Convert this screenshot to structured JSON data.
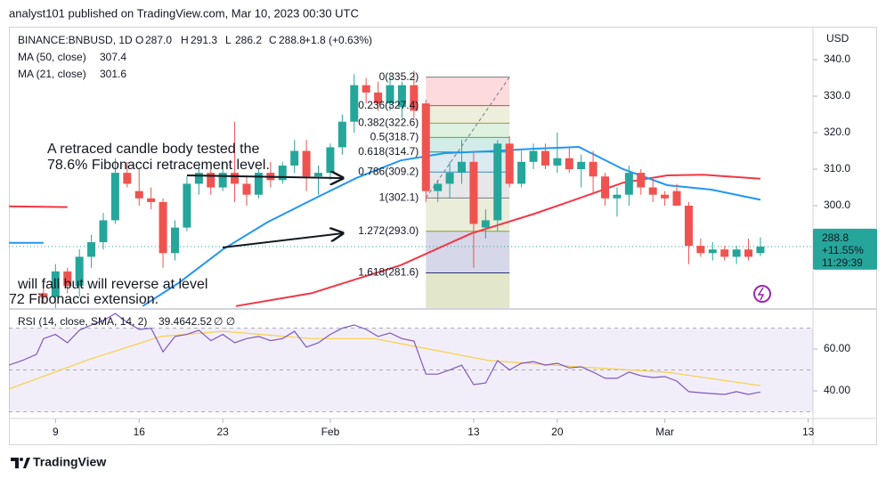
{
  "header": {
    "title": "analyst101 published on TradingView.com, Mar 10, 2023 00:30 UTC"
  },
  "footer": {
    "brand": "TradingView"
  },
  "chart_data": [
    {
      "type": "candlestick",
      "legend": {
        "symbol": "BINANCE:BNBUSD, 1D",
        "items": [
          {
            "key": "O",
            "value": "287.0"
          },
          {
            "key": "H",
            "value": "291.3"
          },
          {
            "key": "L",
            "value": "286.2"
          },
          {
            "key": "C",
            "value": "288.8"
          }
        ],
        "change": "+1.8 (+0.63%)"
      },
      "currency": "USD",
      "x": [
        8,
        9,
        10,
        11,
        12,
        13,
        14,
        15,
        16,
        17,
        18,
        19,
        20,
        21,
        22,
        23,
        24,
        25,
        26,
        27,
        28,
        29,
        30,
        31,
        32,
        33,
        34,
        35,
        36,
        37,
        38,
        39,
        40,
        41,
        42,
        43,
        44,
        45,
        46,
        47,
        48,
        49,
        50,
        51,
        52,
        53,
        54,
        55,
        56,
        57,
        58,
        59,
        60,
        61,
        62,
        63,
        64,
        65,
        66,
        67,
        68
      ],
      "open": [
        276,
        275,
        282,
        278,
        286,
        290,
        296,
        309,
        304,
        302,
        301,
        287,
        294,
        306,
        309,
        305,
        309,
        306,
        303,
        309,
        307,
        311,
        315,
        308,
        309,
        316,
        323,
        333,
        331,
        328,
        327,
        333,
        328,
        304,
        306,
        309,
        312,
        294,
        296,
        317,
        306,
        312,
        315,
        311,
        313,
        310,
        312,
        308,
        302,
        303,
        309,
        305,
        303,
        304,
        300,
        289,
        287,
        288,
        286,
        288,
        287
      ],
      "high": [
        279,
        284,
        283,
        288,
        292,
        298,
        313,
        312,
        310,
        305,
        302,
        296,
        308,
        311,
        310,
        312,
        323,
        308,
        310,
        312,
        312,
        318,
        318,
        311,
        317,
        325,
        336,
        335,
        334,
        336,
        334,
        337,
        329,
        307,
        312,
        318,
        315,
        299,
        318,
        319,
        315,
        317,
        317,
        320,
        316,
        314,
        315,
        309,
        305,
        311,
        310,
        307,
        304,
        306,
        301,
        291,
        290,
        289,
        289,
        291,
        291.3
      ],
      "low": [
        273,
        272,
        276,
        275,
        283,
        288,
        295,
        305,
        300,
        299,
        283,
        285,
        293,
        303,
        303,
        304,
        301,
        300,
        302,
        305,
        306,
        309,
        304,
        303,
        307,
        314,
        320,
        328,
        326,
        326,
        324,
        324,
        301,
        301,
        302,
        306,
        283,
        291,
        293,
        305,
        305,
        310,
        310,
        309,
        309,
        305,
        303,
        300,
        297,
        300,
        303,
        301,
        300,
        300,
        284,
        286,
        285,
        285,
        284,
        285,
        286.2
      ],
      "close": [
        275,
        282,
        278,
        286,
        290,
        296,
        309,
        306,
        302,
        301,
        287,
        294,
        306,
        309,
        305,
        309,
        306,
        303,
        309,
        307,
        311,
        315,
        308,
        309,
        316,
        323,
        333,
        331,
        328,
        333,
        333,
        326,
        304,
        306,
        309,
        312,
        295,
        296,
        317,
        306,
        312,
        315,
        311,
        313,
        310,
        312,
        308,
        302,
        303,
        309,
        305,
        303,
        302,
        300,
        289,
        287,
        288,
        286,
        288,
        286,
        288.8
      ],
      "up_color": "#26a69a",
      "down_color": "#ef5350",
      "series": [
        {
          "name": "MA (50, close)",
          "legend_value": 307.4,
          "color": "#f23645",
          "x": [
            5.1,
            10,
            11,
            24.1,
            30.4,
            37.9,
            43.8,
            49.1,
            52.8,
            56.5,
            60.2,
            63.2,
            68
          ],
          "values": [
            299.8,
            299.6,
            null,
            272.5,
            276,
            283.7,
            292.4,
            297.8,
            302,
            306.3,
            308.3,
            308.5,
            307.4
          ]
        },
        {
          "name": "MA (21, close)",
          "legend_value": 301.6,
          "color": "#2196f3",
          "x": [
            5.1,
            8,
            9,
            16.3,
            19.3,
            23,
            26.7,
            30.4,
            34.2,
            37.9,
            41.6,
            45.3,
            49.1,
            52.8,
            56.5,
            60.2,
            63.9,
            68
          ],
          "values": [
            289.8,
            289.8,
            null,
            272.5,
            278.8,
            288,
            295.4,
            301.5,
            307.6,
            312.4,
            314.4,
            314.9,
            315.6,
            316.1,
            310,
            305.6,
            304.4,
            301.6
          ]
        }
      ],
      "last_price": {
        "value": 288.8,
        "change": "+11.55%",
        "countdown": "11:29:39",
        "color": "#26a69a"
      },
      "fibonacci": {
        "x_start": 40,
        "x_end": 47,
        "levels": [
          {
            "label": "0(335.2)",
            "price": 335.2,
            "color": "#787b86"
          },
          {
            "label": "0.236(327.4)",
            "price": 327.4,
            "color": "#f23645"
          },
          {
            "label": "0.382(322.6)",
            "price": 322.6,
            "color": "#9aa03a"
          },
          {
            "label": "0.5(318.7)",
            "price": 318.7,
            "color": "#4caf50"
          },
          {
            "label": "0.618(314.7)",
            "price": 314.7,
            "color": "#089981"
          },
          {
            "label": "0.786(309.2)",
            "price": 309.2,
            "color": "#3d8cb8"
          },
          {
            "label": "1(302.1)",
            "price": 302.1,
            "color": "#787b86"
          },
          {
            "label": "1.272(293.0)",
            "price": 293.0,
            "color": "#8c9a2e"
          },
          {
            "label": "1.618(281.6)",
            "price": 281.6,
            "color": "#1a237e"
          }
        ]
      },
      "annotations": [
        {
          "lines": [
            "A retraced candle body tested the",
            "78.6% Fibonacci retracement level."
          ]
        },
        {
          "lines": [
            "will fall but will reverse at level",
            "72 Fibonacci extension."
          ]
        }
      ],
      "xlim": [
        5.1,
        72.4
      ],
      "xticks": [
        9,
        16,
        23,
        {
          "value": 32,
          "label": "Feb"
        },
        {
          "value": 44,
          "label": "13"
        },
        {
          "value": 51,
          "label": "20"
        },
        {
          "value": 60,
          "label": "Mar"
        },
        {
          "value": 72,
          "label": "13"
        }
      ],
      "ylim": [
        272.2,
        347.8
      ],
      "yticks": [
        {
          "value": 300,
          "label": "300.0"
        },
        {
          "value": 310,
          "label": "310.0"
        },
        {
          "value": 320,
          "label": "320.0"
        },
        {
          "value": 330,
          "label": "330.0"
        },
        {
          "value": 340,
          "label": "340.0"
        }
      ]
    },
    {
      "type": "line",
      "title": "RSI (14, close, SMA, 14, 2)",
      "symbols": "∅ ∅",
      "series": [
        {
          "name": "RSI",
          "legend_value": 39.46,
          "color": "#7e57c2",
          "x": [
            5.1,
            6.2,
            7.4,
            8,
            9,
            10,
            11,
            12,
            13,
            14,
            15,
            16,
            17,
            18,
            19,
            20,
            21,
            22,
            23,
            24,
            25,
            26,
            27,
            28,
            29,
            30,
            31,
            32,
            33,
            34,
            35,
            36,
            37,
            38,
            39,
            40,
            41,
            42,
            43,
            44,
            45,
            46,
            47,
            48,
            49,
            50,
            51,
            52,
            53,
            54,
            55,
            56,
            57,
            58,
            59,
            60,
            61,
            62,
            63,
            64,
            65,
            66,
            67,
            68
          ],
          "values": [
            52.3,
            54.5,
            57.4,
            65,
            67,
            63,
            69,
            71.5,
            73.6,
            77,
            72.8,
            69.4,
            70,
            58.7,
            66,
            67,
            69,
            64,
            67,
            63,
            65,
            66,
            64,
            65,
            68.5,
            60.9,
            63,
            67,
            70,
            71.5,
            69.4,
            66,
            67.7,
            65,
            63.8,
            48,
            48,
            50,
            52.3,
            43,
            43.8,
            54.5,
            50,
            53.2,
            54,
            52.3,
            53.2,
            51,
            51.5,
            49,
            46,
            46,
            49,
            47.2,
            46.4,
            46.8,
            44.7,
            39.6,
            39.1,
            38.7,
            38.3,
            39.6,
            38.3,
            39.46
          ]
        },
        {
          "name": "SMA",
          "legend_value": 42.52,
          "color": "#f7d046",
          "x": [
            5.1,
            11.8,
            17.8,
            23,
            30.4,
            35.7,
            39.4,
            45.3,
            52.8,
            60.2,
            68
          ],
          "values": [
            40.9,
            55,
            66,
            68.5,
            65,
            65,
            60.9,
            54.5,
            51.5,
            48.9,
            42.52
          ]
        }
      ],
      "band": {
        "lower": 30,
        "middle": 50,
        "upper": 70,
        "color": "#7e57c2"
      },
      "xlim": [
        5.1,
        72.4
      ],
      "ylim": [
        26.8,
        77.9
      ],
      "yticks": [
        {
          "value": 40,
          "label": "40.00"
        },
        {
          "value": 60,
          "label": "60.00"
        }
      ]
    }
  ]
}
